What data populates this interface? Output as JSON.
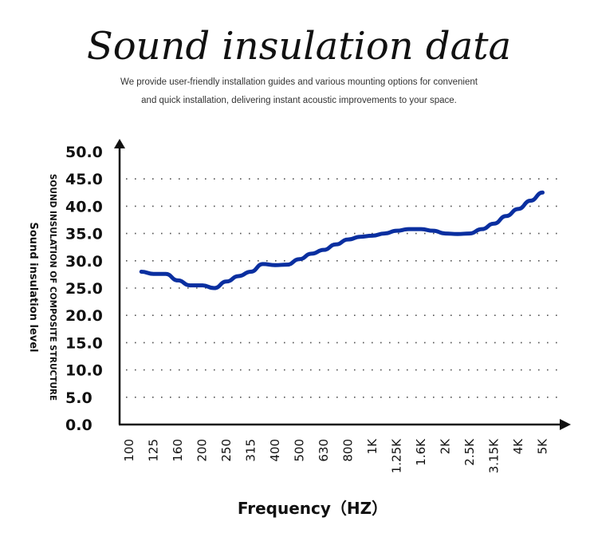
{
  "header": {
    "title": "Sound insulation data",
    "subtitle_line1": "We provide user-friendly installation guides and various mounting options for convenient",
    "subtitle_line2": "and quick installation, delivering instant acoustic improvements to your space."
  },
  "chart_data": {
    "type": "line",
    "xlabel": "Frequency（HZ）",
    "ylabel": "Sound insulation level",
    "ylabel_inner": "SOUND INSULATION OF COMPOSITE STRUCTURE",
    "categories": [
      "100",
      "125",
      "160",
      "200",
      "250",
      "315",
      "400",
      "500",
      "630",
      "800",
      "1K",
      "1.25K",
      "1.6K",
      "2K",
      "2.5K",
      "3.15K",
      "4K",
      "5K"
    ],
    "yticks": [
      "0.0",
      "5.0",
      "10.0",
      "15.0",
      "20.0",
      "25.0",
      "30.0",
      "35.0",
      "40.0",
      "45.0",
      "50.0"
    ],
    "ylim": [
      0,
      50
    ],
    "grid": "dotted horizontal",
    "line_color": "#0a2fa0",
    "series": [
      {
        "name": "Sound insulation",
        "points": [
          [
            0.5,
            28
          ],
          [
            1,
            27.6
          ],
          [
            1.5,
            27.6
          ],
          [
            2,
            26.4
          ],
          [
            2.5,
            25.5
          ],
          [
            3,
            25.5
          ],
          [
            3.5,
            25.0
          ],
          [
            4,
            26.2
          ],
          [
            4.5,
            27.2
          ],
          [
            5,
            28.0
          ],
          [
            5.5,
            29.4
          ],
          [
            6,
            29.2
          ],
          [
            6.5,
            29.3
          ],
          [
            7,
            30.3
          ],
          [
            7.5,
            31.3
          ],
          [
            8,
            32.0
          ],
          [
            8.5,
            33.0
          ],
          [
            9,
            33.9
          ],
          [
            9.5,
            34.4
          ],
          [
            10,
            34.6
          ],
          [
            10.5,
            35.0
          ],
          [
            11,
            35.5
          ],
          [
            11.5,
            35.8
          ],
          [
            12,
            35.8
          ],
          [
            12.5,
            35.5
          ],
          [
            13,
            35.0
          ],
          [
            13.5,
            34.9
          ],
          [
            14,
            35.0
          ],
          [
            14.5,
            35.8
          ],
          [
            15,
            36.8
          ],
          [
            15.5,
            38.2
          ],
          [
            16,
            39.5
          ],
          [
            16.5,
            41.0
          ],
          [
            17,
            42.5
          ]
        ]
      }
    ]
  }
}
